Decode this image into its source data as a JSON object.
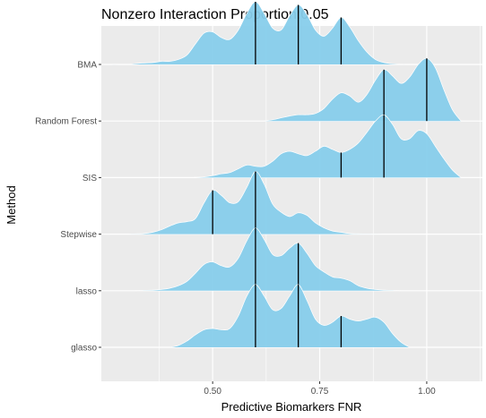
{
  "chart_data": {
    "type": "ridgeline",
    "title": "Nonzero Interaction Proportion:0.05",
    "xlabel": "Predictive Biomarkers FNR",
    "ylabel": "Method",
    "xlim": [
      0.24,
      1.13
    ],
    "x_ticks": [
      0.5,
      0.75,
      1.0
    ],
    "x_tick_labels": [
      "0.50",
      "0.75",
      "1.00"
    ],
    "fill_color": "#87CEEB",
    "line_color": "#000000",
    "panel_bg": "#EBEBEB",
    "grid_color": "#FFFFFF",
    "grid": true,
    "series": [
      {
        "name": "BMA",
        "quantile_lines": [
          0.6,
          0.7,
          0.8
        ],
        "x": [
          0.25,
          0.3,
          0.33,
          0.36,
          0.38,
          0.4,
          0.42,
          0.44,
          0.46,
          0.48,
          0.5,
          0.52,
          0.54,
          0.56,
          0.58,
          0.6,
          0.62,
          0.64,
          0.66,
          0.68,
          0.7,
          0.72,
          0.74,
          0.76,
          0.78,
          0.8,
          0.82,
          0.84,
          0.86,
          0.88,
          0.9,
          0.92,
          0.95
        ],
        "height": [
          0,
          0,
          0.02,
          0.03,
          0.05,
          0.05,
          0.08,
          0.15,
          0.33,
          0.5,
          0.52,
          0.43,
          0.4,
          0.55,
          0.82,
          1.0,
          0.82,
          0.58,
          0.55,
          0.78,
          0.95,
          0.8,
          0.55,
          0.45,
          0.58,
          0.75,
          0.6,
          0.38,
          0.2,
          0.08,
          0.03,
          0.01,
          0
        ]
      },
      {
        "name": "Random Forest",
        "quantile_lines": [
          0.9,
          1.0
        ],
        "x": [
          0.62,
          0.64,
          0.66,
          0.68,
          0.7,
          0.72,
          0.74,
          0.76,
          0.78,
          0.8,
          0.82,
          0.84,
          0.86,
          0.88,
          0.9,
          0.92,
          0.94,
          0.96,
          0.98,
          1.0,
          1.02,
          1.04,
          1.06,
          1.08
        ],
        "height": [
          0,
          0.02,
          0.05,
          0.08,
          0.1,
          0.1,
          0.12,
          0.2,
          0.35,
          0.45,
          0.4,
          0.3,
          0.42,
          0.65,
          0.82,
          0.72,
          0.6,
          0.7,
          0.9,
          1.0,
          0.85,
          0.5,
          0.18,
          0
        ]
      },
      {
        "name": "SIS",
        "quantile_lines": [
          0.8,
          0.9
        ],
        "x": [
          0.45,
          0.48,
          0.5,
          0.52,
          0.54,
          0.56,
          0.58,
          0.6,
          0.62,
          0.64,
          0.66,
          0.68,
          0.7,
          0.72,
          0.74,
          0.76,
          0.78,
          0.8,
          0.82,
          0.84,
          0.86,
          0.88,
          0.9,
          0.92,
          0.94,
          0.96,
          0.98,
          1.0,
          1.02,
          1.04,
          1.06,
          1.08
        ],
        "height": [
          0,
          0.01,
          0.03,
          0.06,
          0.08,
          0.14,
          0.2,
          0.18,
          0.18,
          0.26,
          0.38,
          0.42,
          0.38,
          0.35,
          0.42,
          0.5,
          0.45,
          0.4,
          0.45,
          0.55,
          0.72,
          0.9,
          1.0,
          0.85,
          0.62,
          0.62,
          0.75,
          0.7,
          0.5,
          0.3,
          0.12,
          0
        ]
      },
      {
        "name": "Stepwise",
        "quantile_lines": [
          0.5,
          0.6
        ],
        "x": [
          0.3,
          0.34,
          0.36,
          0.38,
          0.4,
          0.42,
          0.44,
          0.46,
          0.48,
          0.5,
          0.52,
          0.54,
          0.56,
          0.58,
          0.6,
          0.62,
          0.64,
          0.66,
          0.68,
          0.7,
          0.72,
          0.74,
          0.76,
          0.78,
          0.8,
          0.82,
          0.84,
          0.86,
          0.9
        ],
        "height": [
          0,
          0.01,
          0.03,
          0.07,
          0.13,
          0.18,
          0.2,
          0.25,
          0.5,
          0.7,
          0.62,
          0.5,
          0.52,
          0.75,
          1.0,
          0.8,
          0.48,
          0.35,
          0.28,
          0.34,
          0.3,
          0.18,
          0.1,
          0.05,
          0.03,
          0.01,
          0.005,
          0.003,
          0
        ]
      },
      {
        "name": "lasso",
        "quantile_lines": [
          0.6,
          0.7
        ],
        "x": [
          0.32,
          0.36,
          0.38,
          0.4,
          0.42,
          0.44,
          0.46,
          0.48,
          0.5,
          0.52,
          0.54,
          0.56,
          0.58,
          0.6,
          0.62,
          0.64,
          0.66,
          0.68,
          0.7,
          0.72,
          0.74,
          0.76,
          0.78,
          0.8,
          0.82,
          0.84,
          0.86,
          0.88,
          0.9,
          0.94
        ],
        "height": [
          0,
          0.01,
          0.02,
          0.04,
          0.08,
          0.15,
          0.28,
          0.42,
          0.46,
          0.4,
          0.38,
          0.52,
          0.8,
          1.0,
          0.82,
          0.58,
          0.56,
          0.68,
          0.76,
          0.6,
          0.4,
          0.3,
          0.22,
          0.2,
          0.16,
          0.08,
          0.04,
          0.02,
          0.01,
          0
        ]
      },
      {
        "name": "glasso",
        "quantile_lines": [
          0.6,
          0.7,
          0.8
        ],
        "x": [
          0.4,
          0.42,
          0.44,
          0.46,
          0.48,
          0.5,
          0.52,
          0.54,
          0.56,
          0.58,
          0.6,
          0.62,
          0.64,
          0.66,
          0.68,
          0.7,
          0.72,
          0.74,
          0.76,
          0.78,
          0.8,
          0.82,
          0.84,
          0.86,
          0.88,
          0.9,
          0.92,
          0.94,
          0.96
        ],
        "height": [
          0,
          0.03,
          0.1,
          0.2,
          0.28,
          0.3,
          0.28,
          0.3,
          0.5,
          0.82,
          1.0,
          0.82,
          0.6,
          0.62,
          0.82,
          1.0,
          0.75,
          0.45,
          0.35,
          0.4,
          0.5,
          0.45,
          0.42,
          0.45,
          0.48,
          0.4,
          0.22,
          0.08,
          0
        ]
      }
    ]
  }
}
